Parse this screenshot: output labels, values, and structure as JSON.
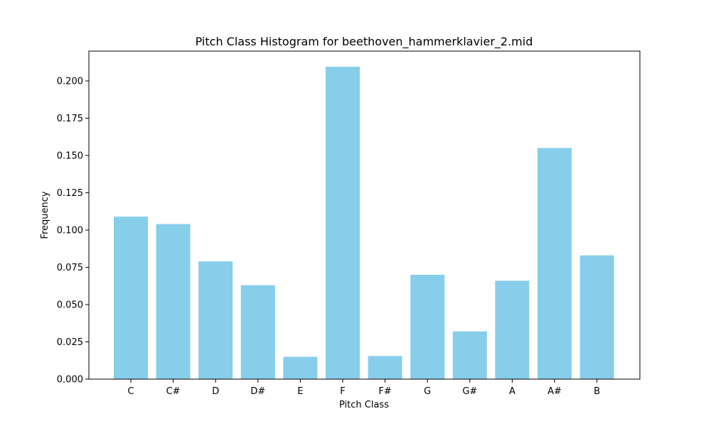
{
  "chart_data": {
    "type": "bar",
    "title": "Pitch Class Histogram for beethoven_hammerklavier_2.mid",
    "xlabel": "Pitch Class",
    "ylabel": "Frequency",
    "categories": [
      "C",
      "C#",
      "D",
      "D#",
      "E",
      "F",
      "F#",
      "G",
      "G#",
      "A",
      "A#",
      "B"
    ],
    "values": [
      0.109,
      0.104,
      0.079,
      0.063,
      0.015,
      0.2095,
      0.0155,
      0.07,
      0.032,
      0.066,
      0.155,
      0.083
    ],
    "ylim": [
      0,
      0.22
    ],
    "yticks": [
      "0.000",
      "0.025",
      "0.050",
      "0.075",
      "0.100",
      "0.125",
      "0.150",
      "0.175",
      "0.200"
    ],
    "bar_color": "#87ceeb",
    "grid": false,
    "legend": false
  }
}
